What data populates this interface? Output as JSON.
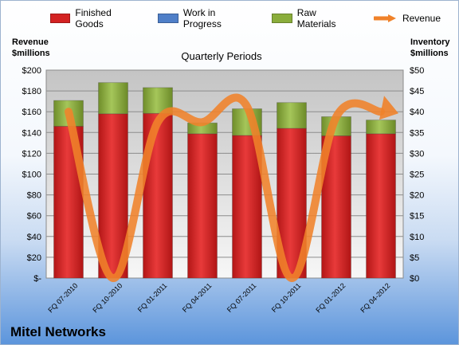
{
  "chart_data": {
    "type": "bar",
    "title": "Quarterly Periods",
    "categories": [
      "FQ 07-2010",
      "FQ 10-2010",
      "FQ 01-2011",
      "FQ 04-2011",
      "FQ 07-2011",
      "FQ 10-2011",
      "FQ 01-2012",
      "FQ 04-2012"
    ],
    "series": [
      {
        "name": "Finished Goods",
        "axis": "right",
        "stacked": true,
        "color": "#d32222",
        "values": [
          36.5,
          39.5,
          39.6,
          34.7,
          34.3,
          36.0,
          34.2,
          34.7
        ]
      },
      {
        "name": "Work in Progress",
        "axis": "right",
        "stacked": true,
        "color": "#4f7fc8",
        "values": [
          0,
          0,
          0,
          0,
          0,
          0,
          0,
          0
        ]
      },
      {
        "name": "Raw Materials",
        "axis": "right",
        "stacked": true,
        "color": "#8aad3b",
        "values": [
          6.2,
          7.5,
          6.2,
          2.6,
          6.4,
          6.2,
          4.6,
          3.3
        ]
      },
      {
        "name": "Revenue",
        "axis": "left",
        "type": "line",
        "color": "#f0822a",
        "values": [
          160,
          0,
          150,
          150,
          165,
          0,
          155,
          160
        ]
      }
    ],
    "ylabel_left": "Revenue\n$millions",
    "ylabel_right": "Inventory\n$millions",
    "ylim_left": [
      0,
      200
    ],
    "ylim_right": [
      0,
      50
    ],
    "yticks_left": [
      "$-",
      "$20",
      "$40",
      "$60",
      "$80",
      "$100",
      "$120",
      "$140",
      "$160",
      "$180",
      "$200"
    ],
    "yticks_right": [
      "$0",
      "$5",
      "$10",
      "$15",
      "$20",
      "$25",
      "$30",
      "$35",
      "$40",
      "$45",
      "$50"
    ],
    "grid": true,
    "legend": "top"
  },
  "company": "Mitel Networks"
}
